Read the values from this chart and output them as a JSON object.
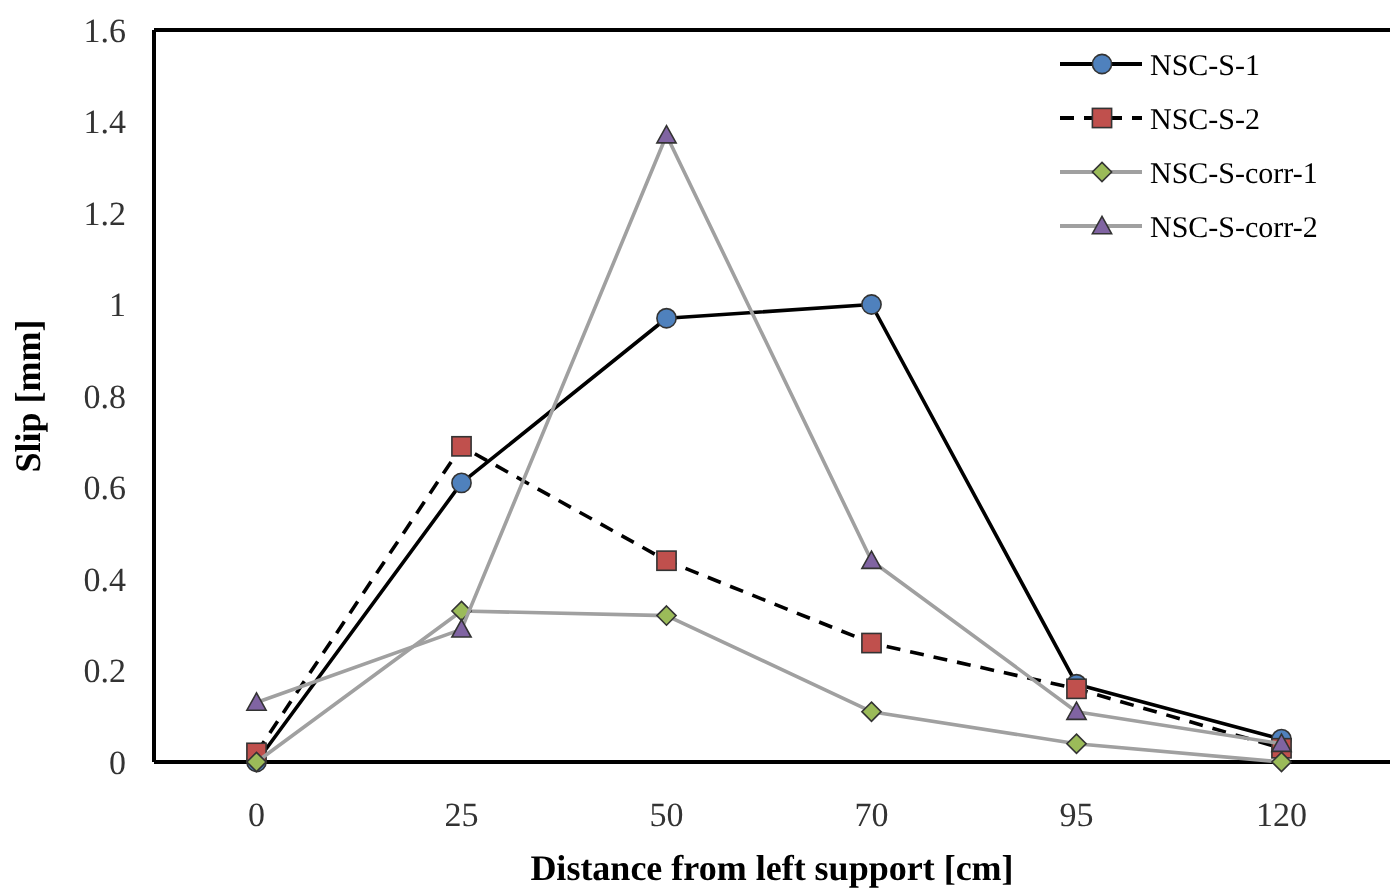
{
  "chart_data": {
    "type": "line",
    "xlabel": "Distance from left support  [cm]",
    "ylabel": "Slip [mm]",
    "categories": [
      "0",
      "25",
      "50",
      "70",
      "95",
      "120"
    ],
    "ylim": [
      0,
      1.6
    ],
    "yticks": [
      0,
      0.2,
      0.4,
      0.6,
      0.8,
      1,
      1.2,
      1.4,
      1.6
    ],
    "grid": false,
    "legend": "top right",
    "series": [
      {
        "name": "NSC-S-1",
        "color": "#000000",
        "colors": [
          "#4f81bd",
          "#4f81bd",
          "#4f81bd",
          "#4f81bd",
          "#4f81bd",
          "#4f81bd"
        ],
        "marker": "circle",
        "line_style": "solid",
        "values": [
          0,
          0.61,
          0.97,
          1.0,
          0.17,
          0.05
        ]
      },
      {
        "name": "NSC-S-2",
        "color": "#000000",
        "colors": [
          "#c0504d",
          "#c0504d",
          "#c0504d",
          "#c0504d",
          "#c0504d",
          "#c0504d"
        ],
        "marker": "square",
        "line_style": "dashed",
        "values": [
          0.02,
          0.69,
          0.44,
          0.26,
          0.16,
          0.03
        ]
      },
      {
        "name": "NSC-S-corr-1",
        "color": "#a0a0a0",
        "colors": [
          "#9bbb59",
          "#9bbb59",
          "#9bbb59",
          "#9bbb59",
          "#9bbb59",
          "#9bbb59"
        ],
        "marker": "diamond",
        "line_style": "solid",
        "values": [
          0,
          0.33,
          0.32,
          0.11,
          0.04,
          0
        ]
      },
      {
        "name": "NSC-S-corr-2",
        "color": "#a0a0a0",
        "colors": [
          "#8064a2",
          "#8064a2",
          "#8064a2",
          "#8064a2",
          "#8064a2",
          "#8064a2"
        ],
        "marker": "triangle",
        "line_style": "solid",
        "values": [
          0.13,
          0.29,
          1.37,
          0.44,
          0.11,
          0.04
        ]
      }
    ]
  }
}
